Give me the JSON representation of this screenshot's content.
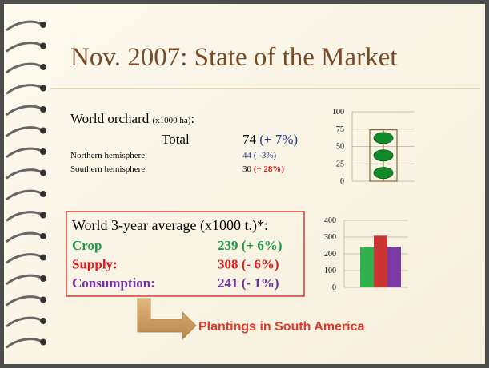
{
  "title": "Nov. 2007: State of the Market",
  "orchard": {
    "heading": "World orchard",
    "unit": "(x1000 ha)",
    "colon": ":",
    "total": {
      "label": "Total",
      "value": 74,
      "change": "(+ 7%)"
    },
    "rows": [
      {
        "label": "Northern hemisphere:",
        "value": 44,
        "change": "(- 3%)"
      },
      {
        "label": "Southern hemisphere:",
        "value": 30,
        "change": "(+ 28%)"
      }
    ]
  },
  "average": {
    "heading": "World 3-year average (x1000 t.)*:",
    "rows": [
      {
        "label": "Crop",
        "value": 239,
        "change": "(+ 6%)",
        "color": "#1a9e45"
      },
      {
        "label": "Supply:",
        "value": 308,
        "change": "(- 6%)",
        "color": "#e3161b"
      },
      {
        "label": "Consumption:",
        "value": 241,
        "change": "(- 1%)",
        "color": "#7030a0"
      }
    ]
  },
  "callout": "Plantings in South America",
  "orchard_chart": {
    "type": "box",
    "ylim": [
      0,
      100
    ],
    "yticks": [
      0,
      25,
      50,
      75,
      100
    ],
    "grid": true,
    "color": "#118a2a"
  },
  "average_chart": {
    "type": "bar",
    "ylim": [
      0,
      400
    ],
    "yticks": [
      0,
      100,
      200,
      300,
      400
    ],
    "grid": true,
    "colors": [
      "#2fb24c",
      "#cc3333",
      "#7b3aa3"
    ]
  }
}
